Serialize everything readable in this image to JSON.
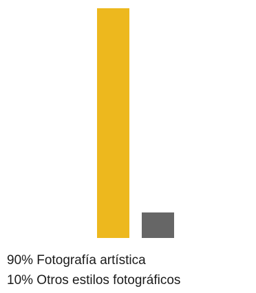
{
  "chart_data": {
    "type": "bar",
    "categories": [
      "Fotografía artística",
      "Otros estilos fotográficos"
    ],
    "values": [
      90,
      10
    ],
    "unit": "%",
    "ylim": [
      0,
      90
    ],
    "grid": false,
    "colors": [
      "#EDB81E",
      "#666666"
    ],
    "legend": [
      "90% Fotografía artística",
      "10% Otros estilos fotográficos"
    ]
  }
}
